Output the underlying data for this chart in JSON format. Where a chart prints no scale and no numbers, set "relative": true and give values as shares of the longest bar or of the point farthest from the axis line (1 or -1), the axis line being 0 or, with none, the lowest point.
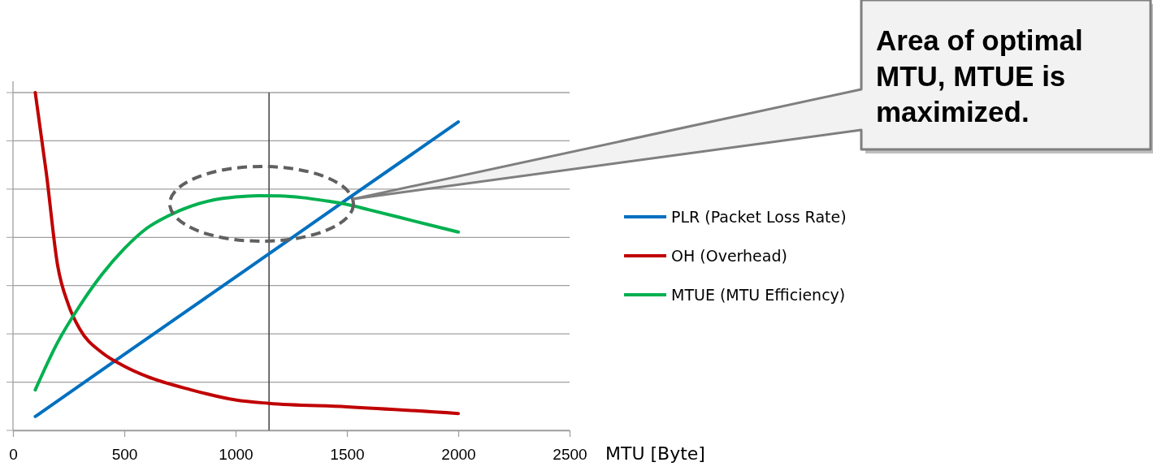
{
  "chart_data": {
    "type": "line",
    "relative": true,
    "xlabel": "MTU [Byte]",
    "xlim": [
      0,
      2500
    ],
    "xticks": [
      0,
      500,
      1000,
      1500,
      2000,
      2500
    ],
    "grid": "y",
    "legend": "right",
    "series": [
      {
        "name": "PLR (Packet Loss Rate)",
        "color": "#0070c0",
        "x": [
          100,
          500,
          1000,
          1500,
          2000
        ],
        "values": [
          0.041,
          0.225,
          0.454,
          0.684,
          0.913
        ]
      },
      {
        "name": "OH (Overhead)",
        "color": "#c00000",
        "x": [
          100,
          150,
          200,
          250,
          300,
          400,
          500,
          600,
          800,
          1000,
          1150,
          1500,
          2000
        ],
        "values": [
          1.0,
          0.76,
          0.49,
          0.37,
          0.3,
          0.23,
          0.19,
          0.16,
          0.12,
          0.09,
          0.08,
          0.07,
          0.05
        ]
      },
      {
        "name": "MTUE (MTU Efficiency)",
        "color": "#00b050",
        "x": [
          100,
          200,
          300,
          400,
          500,
          600,
          700,
          800,
          900,
          1000,
          1100,
          1200,
          1300,
          1400,
          1500,
          1600,
          1800,
          2000
        ],
        "values": [
          0.12,
          0.26,
          0.369,
          0.462,
          0.538,
          0.598,
          0.636,
          0.664,
          0.682,
          0.691,
          0.695,
          0.694,
          0.689,
          0.68,
          0.669,
          0.653,
          0.62,
          0.587
        ]
      }
    ],
    "ref_lines": [
      {
        "axis": "x",
        "value": 1150,
        "color": "#404040"
      }
    ],
    "annotations": [
      "Area of optimal MTU, MTUE is maximized."
    ]
  }
}
